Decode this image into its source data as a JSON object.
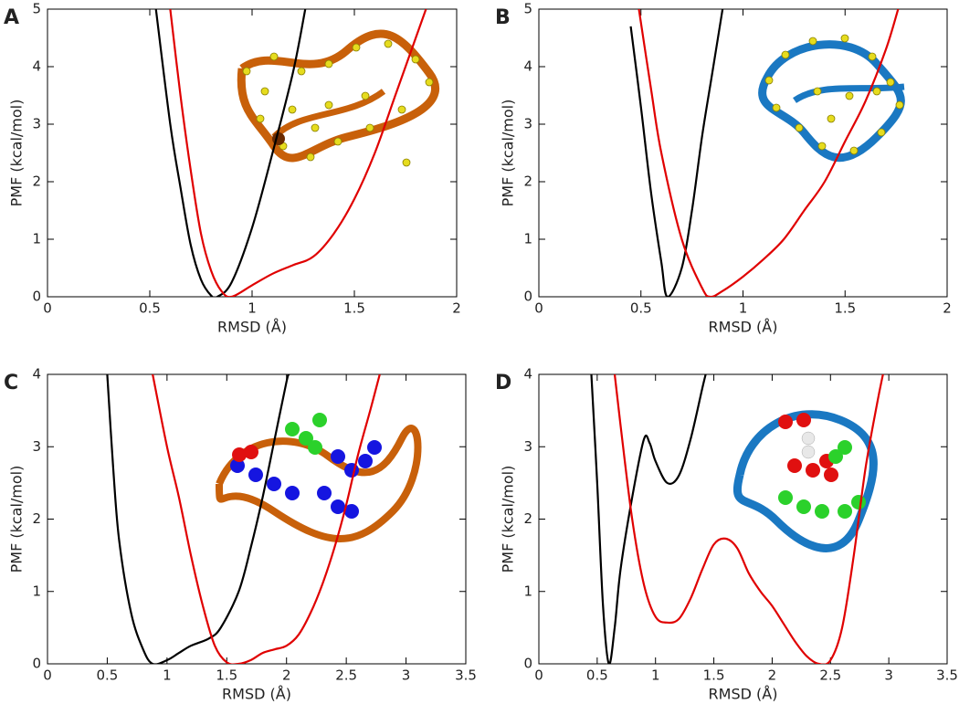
{
  "chart_data": [
    {
      "type": "line",
      "label": "A",
      "xlabel": "RMSD (Å)",
      "ylabel": "PMF (kcal/mol)",
      "xlim": [
        0,
        2
      ],
      "ylim": [
        0,
        5
      ],
      "xticks": [
        0,
        0.5,
        1,
        1.5,
        2
      ],
      "yticks": [
        0,
        1,
        2,
        3,
        4,
        5
      ],
      "series": [
        {
          "color": "#000000",
          "x": [
            0.53,
            0.6,
            0.65,
            0.7,
            0.75,
            0.8,
            0.83,
            0.9,
            1.0,
            1.1,
            1.2,
            1.26
          ],
          "values": [
            5,
            3.0,
            1.9,
            0.9,
            0.3,
            0.02,
            0,
            0.25,
            1.2,
            2.5,
            3.9,
            5
          ]
        },
        {
          "color": "#e00000",
          "x": [
            0.6,
            0.65,
            0.7,
            0.75,
            0.8,
            0.85,
            0.9,
            1.0,
            1.1,
            1.2,
            1.3,
            1.4,
            1.5,
            1.6,
            1.7,
            1.8,
            1.85
          ],
          "values": [
            5,
            3.5,
            2.2,
            1.1,
            0.45,
            0.1,
            0,
            0.2,
            0.4,
            0.55,
            0.7,
            1.1,
            1.7,
            2.5,
            3.5,
            4.5,
            5
          ]
        }
      ]
    },
    {
      "type": "line",
      "label": "B",
      "xlabel": "RMSD (Å)",
      "ylabel": "PMF (kcal/mol)",
      "xlim": [
        0,
        2
      ],
      "ylim": [
        0,
        5
      ],
      "xticks": [
        0,
        0.5,
        1,
        1.5,
        2
      ],
      "yticks": [
        0,
        1,
        2,
        3,
        4,
        5
      ],
      "series": [
        {
          "color": "#000000",
          "x": [
            0.45,
            0.5,
            0.55,
            0.6,
            0.63,
            0.7,
            0.75,
            0.8,
            0.85,
            0.9
          ],
          "values": [
            4.7,
            3.3,
            1.8,
            0.6,
            0,
            0.5,
            1.5,
            2.8,
            3.9,
            5
          ]
        },
        {
          "color": "#e00000",
          "x": [
            0.49,
            0.55,
            0.6,
            0.7,
            0.8,
            0.84,
            0.9,
            1.0,
            1.1,
            1.2,
            1.3,
            1.4,
            1.5,
            1.6,
            1.7,
            1.76
          ],
          "values": [
            5,
            3.6,
            2.5,
            1.0,
            0.15,
            0,
            0.1,
            0.35,
            0.65,
            1.0,
            1.5,
            2.0,
            2.7,
            3.4,
            4.3,
            5
          ]
        }
      ]
    },
    {
      "type": "line",
      "label": "C",
      "xlabel": "RMSD (Å)",
      "ylabel": "PMF (kcal/mol)",
      "xlim": [
        0,
        3.5
      ],
      "ylim": [
        0,
        4
      ],
      "xticks": [
        0,
        0.5,
        1,
        1.5,
        2,
        2.5,
        3,
        3.5
      ],
      "yticks": [
        0,
        1,
        2,
        3,
        4
      ],
      "series": [
        {
          "color": "#000000",
          "x": [
            0.5,
            0.55,
            0.6,
            0.7,
            0.8,
            0.88,
            1.0,
            1.1,
            1.2,
            1.35,
            1.45,
            1.6,
            1.7,
            1.8,
            1.9,
            2.0,
            2.02
          ],
          "values": [
            4,
            2.7,
            1.7,
            0.7,
            0.2,
            0,
            0.05,
            0.15,
            0.25,
            0.35,
            0.5,
            1.0,
            1.6,
            2.3,
            3.1,
            3.9,
            4
          ]
        },
        {
          "color": "#e00000",
          "x": [
            0.88,
            1.0,
            1.1,
            1.2,
            1.3,
            1.4,
            1.5,
            1.6,
            1.7,
            1.8,
            1.9,
            2.0,
            2.1,
            2.2,
            2.3,
            2.4,
            2.5,
            2.6,
            2.7,
            2.78
          ],
          "values": [
            4,
            3.0,
            2.3,
            1.5,
            0.8,
            0.25,
            0.02,
            0,
            0.05,
            0.15,
            0.2,
            0.25,
            0.4,
            0.7,
            1.1,
            1.6,
            2.2,
            2.9,
            3.5,
            4
          ]
        }
      ]
    },
    {
      "type": "line",
      "label": "D",
      "xlabel": "RMSD (Å)",
      "ylabel": "PMF (kcal/mol)",
      "xlim": [
        0,
        3.5
      ],
      "ylim": [
        0,
        4
      ],
      "xticks": [
        0,
        0.5,
        1,
        1.5,
        2,
        2.5,
        3,
        3.5
      ],
      "yticks": [
        0,
        1,
        2,
        3,
        4
      ],
      "series": [
        {
          "color": "#000000",
          "x": [
            0.45,
            0.5,
            0.55,
            0.6,
            0.65,
            0.7,
            0.8,
            0.9,
            0.95,
            1.0,
            1.1,
            1.2,
            1.3,
            1.4,
            1.43
          ],
          "values": [
            4,
            2.5,
            0.8,
            0,
            0.5,
            1.3,
            2.3,
            3.1,
            3.05,
            2.8,
            2.5,
            2.6,
            3.1,
            3.8,
            4
          ]
        },
        {
          "color": "#e00000",
          "x": [
            0.65,
            0.7,
            0.8,
            0.9,
            1.0,
            1.1,
            1.2,
            1.3,
            1.4,
            1.5,
            1.6,
            1.7,
            1.8,
            1.9,
            2.0,
            2.1,
            2.2,
            2.3,
            2.4,
            2.5,
            2.6,
            2.7,
            2.8,
            2.9,
            2.95
          ],
          "values": [
            4,
            3.3,
            2.0,
            1.1,
            0.65,
            0.57,
            0.62,
            0.9,
            1.3,
            1.65,
            1.73,
            1.6,
            1.25,
            1.0,
            0.8,
            0.55,
            0.3,
            0.1,
            0,
            0.05,
            0.5,
            1.5,
            2.7,
            3.6,
            4
          ]
        }
      ]
    }
  ]
}
